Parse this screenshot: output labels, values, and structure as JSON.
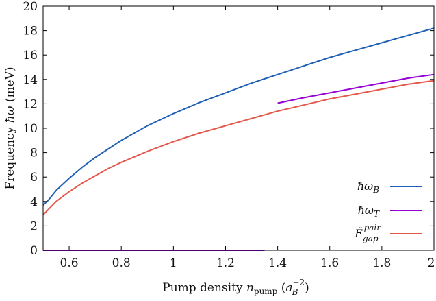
{
  "chart_data": {
    "type": "line",
    "xlabel": "Pump density n_pump (a_B^−2)",
    "ylabel": "Frequency ħω (meV)",
    "xlim": [
      0.5,
      2.0
    ],
    "ylim": [
      0,
      20
    ],
    "x_ticks": [
      "0.6",
      "0.8",
      "1",
      "1.2",
      "1.4",
      "1.6",
      "1.8",
      "2"
    ],
    "x_tick_values": [
      0.6,
      0.8,
      1.0,
      1.2,
      1.4,
      1.6,
      1.8,
      2.0
    ],
    "y_ticks": [
      "0",
      "2",
      "4",
      "6",
      "8",
      "10",
      "12",
      "14",
      "16",
      "18",
      "20"
    ],
    "y_tick_values": [
      0,
      2,
      4,
      6,
      8,
      10,
      12,
      14,
      16,
      18,
      20
    ],
    "grid": false,
    "legend_position": "bottom-right",
    "series": [
      {
        "name": "ħω_B",
        "color": "#1f5fb4",
        "x": [
          0.5,
          0.52,
          0.55,
          0.6,
          0.65,
          0.7,
          0.75,
          0.8,
          0.9,
          1.0,
          1.1,
          1.2,
          1.3,
          1.4,
          1.5,
          1.6,
          1.7,
          1.8,
          1.9,
          2.0
        ],
        "y": [
          3.7,
          4.1,
          4.9,
          5.9,
          6.8,
          7.6,
          8.3,
          9.0,
          10.2,
          11.2,
          12.1,
          12.9,
          13.7,
          14.4,
          15.1,
          15.8,
          16.4,
          17.0,
          17.6,
          18.2
        ]
      },
      {
        "name": "ħω_T",
        "color": "#9400d3",
        "x": [
          0.5,
          1.35,
          null,
          1.4,
          1.5,
          1.6,
          1.7,
          1.8,
          1.9,
          2.0
        ],
        "y": [
          0.0,
          0.0,
          null,
          12.05,
          12.5,
          12.9,
          13.3,
          13.7,
          14.1,
          14.4
        ]
      },
      {
        "name": "Ẽ_gap^pair",
        "color": "#e4584b",
        "x": [
          0.5,
          0.55,
          0.6,
          0.65,
          0.7,
          0.75,
          0.8,
          0.9,
          1.0,
          1.1,
          1.2,
          1.3,
          1.4,
          1.5,
          1.6,
          1.7,
          1.8,
          1.9,
          2.0
        ],
        "y": [
          2.9,
          4.0,
          4.8,
          5.5,
          6.1,
          6.7,
          7.2,
          8.1,
          8.9,
          9.6,
          10.2,
          10.8,
          11.4,
          11.9,
          12.4,
          12.8,
          13.2,
          13.6,
          13.9
        ]
      }
    ]
  }
}
